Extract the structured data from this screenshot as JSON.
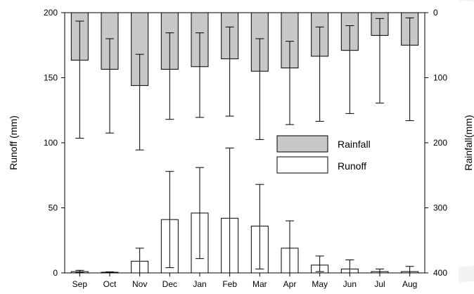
{
  "chart_data": {
    "type": "bar",
    "categories": [
      "Sep",
      "Oct",
      "Nov",
      "Dec",
      "Jan",
      "Feb",
      "Mar",
      "Apr",
      "May",
      "Jun",
      "Jul",
      "Aug"
    ],
    "ylabel": "Runoff (mm)",
    "y2label": "Rainfall(mm)",
    "ylim": [
      0,
      200
    ],
    "y2lim": [
      400,
      0
    ],
    "yticks": [
      "0",
      "50",
      "100",
      "150",
      "200"
    ],
    "y2ticks": [
      "0",
      "100",
      "200",
      "300",
      "400"
    ],
    "legend_position": "center-right",
    "grid": false,
    "series": [
      {
        "name": "Rainfall",
        "axis": "right",
        "direction": "down-from-top",
        "color": "#c8c8c8",
        "values": [
          73,
          87,
          112,
          87,
          83,
          71,
          90,
          85,
          67,
          58,
          35,
          50
        ],
        "error_low": [
          193,
          185,
          211,
          164,
          161,
          159,
          195,
          172,
          167,
          155,
          139,
          166
        ],
        "error_high": [
          13,
          40,
          64,
          31,
          31,
          22,
          40,
          44,
          22,
          20,
          9,
          8
        ]
      },
      {
        "name": "Runoff",
        "axis": "left",
        "direction": "up-from-bottom",
        "color": "#ffffff",
        "values": [
          1,
          0.5,
          9,
          41,
          46,
          42,
          36,
          19,
          6,
          3,
          1,
          1
        ],
        "error_low": [
          0.3,
          0.2,
          0,
          4,
          11,
          0,
          3,
          0,
          1,
          0,
          0,
          0
        ],
        "error_high": [
          2,
          0.8,
          19,
          78,
          81,
          96,
          68,
          40,
          13,
          10,
          3,
          5
        ]
      }
    ]
  }
}
